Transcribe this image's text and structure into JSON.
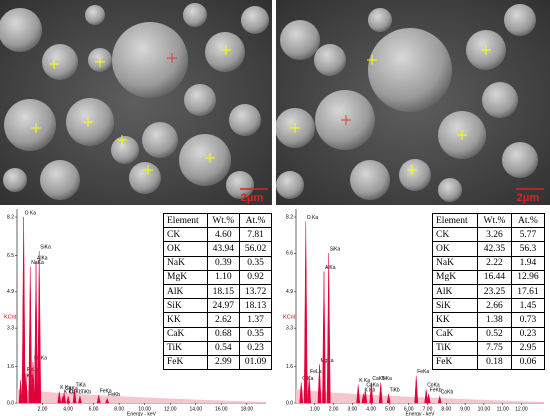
{
  "figure": {
    "images": [
      {
        "scale_label": "2μm"
      },
      {
        "scale_label": "2μm"
      }
    ],
    "spectra": [
      {
        "type": "spectrum",
        "y_label": "KCnt",
        "x_label": "Energy - keV",
        "xlim": [
          0,
          19.5
        ],
        "ylim": [
          0,
          8.2
        ],
        "yticks": [
          8.2,
          6.5,
          4.9,
          3.3,
          1.6,
          {
            "value": 0,
            "label": "0.0"
          }
        ],
        "xticks": [
          {
            "value": 2,
            "label": "2.00"
          },
          {
            "value": 4,
            "label": "4.00"
          },
          {
            "value": 6,
            "label": "6.00"
          },
          {
            "value": 8,
            "label": "8.00"
          },
          {
            "value": 10,
            "label": "10.00"
          },
          {
            "value": 12,
            "label": "12.00"
          },
          {
            "value": 14,
            "label": "14.00"
          },
          {
            "value": 16,
            "label": "16.00"
          },
          {
            "value": 18,
            "label": "18.00"
          }
        ],
        "color": "#e0003a",
        "peaks": [
          {
            "label": "C Ka",
            "energy": 0.28,
            "counts": 1.0
          },
          {
            "label": "O Ka",
            "energy": 0.52,
            "counts": 8.2
          },
          {
            "label": "FeLa",
            "energy": 0.7,
            "counts": 1.3
          },
          {
            "label": "NaKa",
            "energy": 1.04,
            "counts": 6.0
          },
          {
            "label": "MgKa",
            "energy": 1.25,
            "counts": 1.8
          },
          {
            "label": "AlKa",
            "energy": 1.49,
            "counts": 6.2
          },
          {
            "label": "SiKa",
            "energy": 1.74,
            "counts": 6.7
          },
          {
            "label": "K Ka",
            "energy": 3.31,
            "counts": 0.5
          },
          {
            "label": "K Kb",
            "energy": 3.59,
            "counts": 0.3
          },
          {
            "label": "CaKa",
            "energy": 3.69,
            "counts": 0.45
          },
          {
            "label": "CaKb",
            "energy": 4.01,
            "counts": 0.3
          },
          {
            "label": "TiKa",
            "energy": 4.51,
            "counts": 0.6
          },
          {
            "label": "TiKb",
            "energy": 4.93,
            "counts": 0.3
          },
          {
            "label": "FeKa",
            "energy": 6.4,
            "counts": 0.35
          },
          {
            "label": "FeKb",
            "energy": 7.06,
            "counts": 0.2
          }
        ],
        "table": {
          "header": [
            "Element",
            "Wt.%",
            "At.%"
          ],
          "rows": [
            [
              "CK",
              "4.60",
              "7.81"
            ],
            [
              "OK",
              "43.94",
              "56.02"
            ],
            [
              "NaK",
              "0.39",
              "0.35"
            ],
            [
              "MgK",
              "1.10",
              "0.92"
            ],
            [
              "AlK",
              "18.15",
              "13.72"
            ],
            [
              "SiK",
              "24.97",
              "18.13"
            ],
            [
              "KK",
              "2.62",
              "1.37"
            ],
            [
              "CaK",
              "0.68",
              "0.35"
            ],
            [
              "TiK",
              "0.54",
              "0.23"
            ],
            [
              "FeK",
              "2.99",
              "01.09"
            ]
          ]
        }
      },
      {
        "type": "spectrum",
        "y_label": "KCnt",
        "x_label": "Energy - keV",
        "xlim": [
          0,
          13.2
        ],
        "ylim": [
          0,
          8.2
        ],
        "yticks": [
          8.2,
          6.6,
          4.9,
          3.3,
          1.6,
          {
            "value": 0,
            "label": "0.0"
          }
        ],
        "xticks": [
          {
            "value": 1,
            "label": "1.00"
          },
          {
            "value": 2,
            "label": "2.00"
          },
          {
            "value": 3,
            "label": "3.00"
          },
          {
            "value": 4,
            "label": "4.00"
          },
          {
            "value": 5,
            "label": "5.00"
          },
          {
            "value": 6,
            "label": "6.00"
          },
          {
            "value": 7,
            "label": "7.00"
          },
          {
            "value": 8,
            "label": "8.00"
          },
          {
            "value": 9,
            "label": "9.00"
          },
          {
            "value": 10,
            "label": "10.00"
          },
          {
            "value": 11,
            "label": "11.00"
          },
          {
            "value": 12,
            "label": "12.00"
          }
        ],
        "color": "#e0003a",
        "peaks": [
          {
            "label": "C Ka",
            "energy": 0.28,
            "counts": 0.9
          },
          {
            "label": "O Ka",
            "energy": 0.52,
            "counts": 8.0
          },
          {
            "label": "FeLa",
            "energy": 0.7,
            "counts": 1.2
          },
          {
            "label": "MgKa",
            "energy": 1.25,
            "counts": 1.7
          },
          {
            "label": "AlKa",
            "energy": 1.49,
            "counts": 5.8
          },
          {
            "label": "SiKa",
            "energy": 1.74,
            "counts": 6.6
          },
          {
            "label": "K Ka",
            "energy": 3.31,
            "counts": 0.8
          },
          {
            "label": "K Kb",
            "energy": 3.59,
            "counts": 0.4
          },
          {
            "label": "CaKa",
            "energy": 3.69,
            "counts": 0.6
          },
          {
            "label": "CaKb",
            "energy": 4.01,
            "counts": 0.9
          },
          {
            "label": "TiKa",
            "energy": 4.51,
            "counts": 0.9
          },
          {
            "label": "TiKb",
            "energy": 4.93,
            "counts": 0.4
          },
          {
            "label": "FeKa",
            "energy": 6.4,
            "counts": 1.2
          },
          {
            "label": "CoKa",
            "energy": 6.93,
            "counts": 0.6
          },
          {
            "label": "FeKb",
            "energy": 7.06,
            "counts": 0.4
          },
          {
            "label": "CoKb",
            "energy": 7.65,
            "counts": 0.3
          }
        ],
        "table": {
          "header": [
            "Element",
            "Wt.%",
            "At.%"
          ],
          "rows": [
            [
              "CK",
              "3.26",
              "5.77"
            ],
            [
              "OK",
              "42.35",
              "56.3"
            ],
            [
              "NaK",
              "2.22",
              "1.94"
            ],
            [
              "MgK",
              "16.44",
              "12.96"
            ],
            [
              "AlK",
              "23.25",
              "17.61"
            ],
            [
              "SiK",
              "2.66",
              "1.45"
            ],
            [
              "KK",
              "1.38",
              "0.73"
            ],
            [
              "CaK",
              "0.52",
              "0.23"
            ],
            [
              "TiK",
              "7.75",
              "2.95"
            ],
            [
              "FeK",
              "0.18",
              "0.06"
            ]
          ]
        }
      }
    ]
  }
}
